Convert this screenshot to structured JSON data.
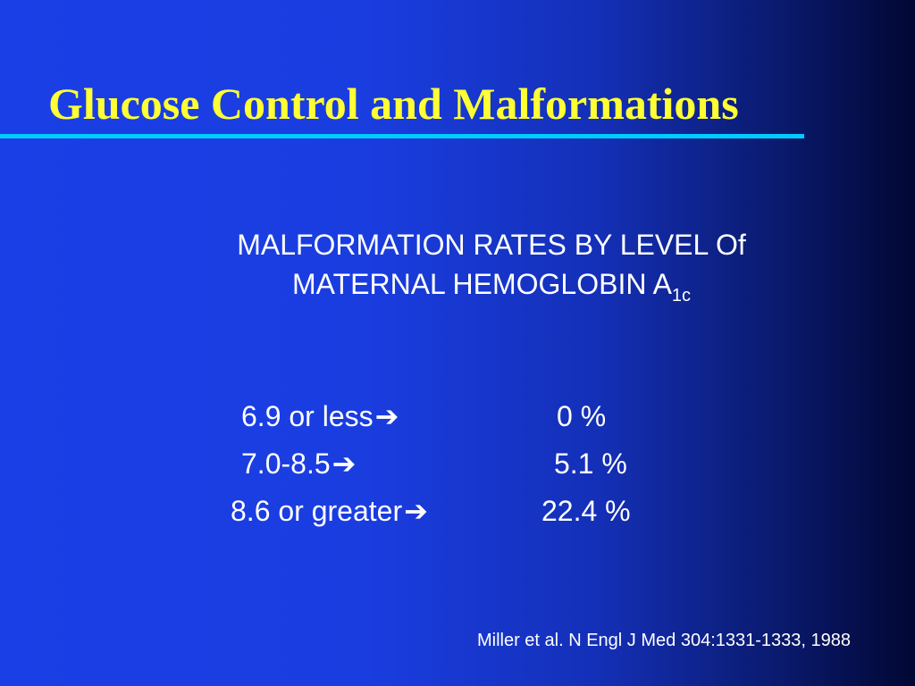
{
  "slide": {
    "title": "Glucose Control and Malformations",
    "subtitle": {
      "line1": "MALFORMATION RATES BY LEVEL Of",
      "line2": "MATERNAL HEMOGLOBIN A",
      "line2_subscript": "1c"
    },
    "arrow_glyph": "➔",
    "rows": [
      {
        "label": "6.9 or less",
        "value": "0 %"
      },
      {
        "label": "7.0-8.5",
        "value": "5.1 %"
      },
      {
        "label": "8.6 or greater",
        "value": "22.4 %"
      }
    ],
    "citation": "Miller et al. N Engl J Med 304:1331-1333, 1988"
  },
  "colors": {
    "title": "#ffff33",
    "rule": "#00ccff",
    "background_left": "#1a3fe6",
    "background_right": "#020733",
    "text": "#ffffff"
  }
}
